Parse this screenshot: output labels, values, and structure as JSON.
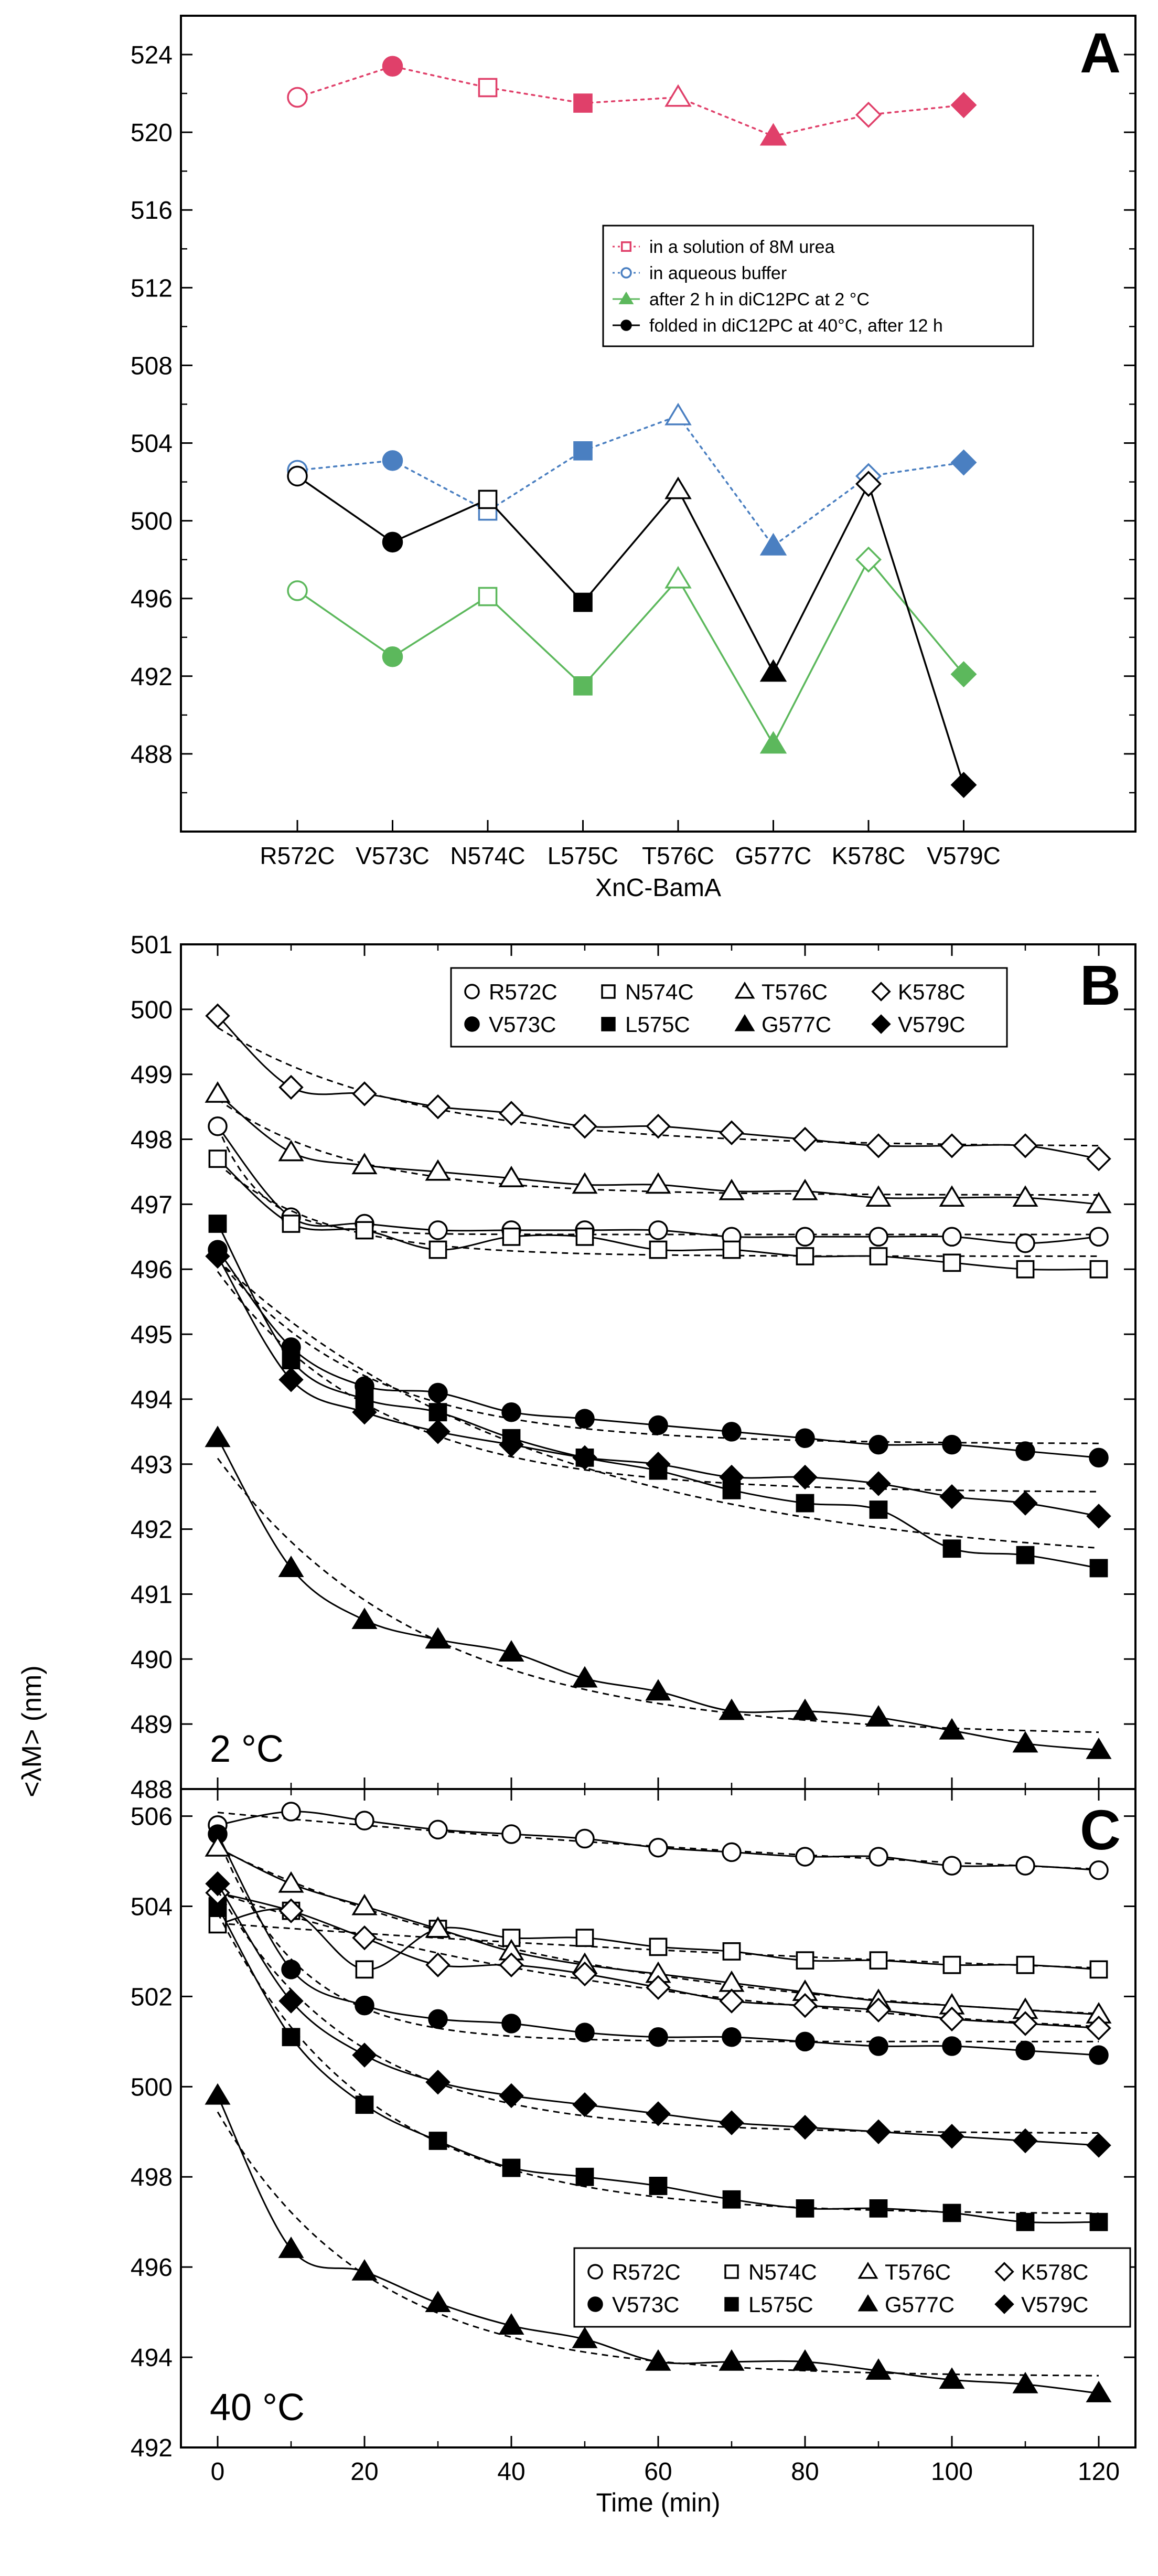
{
  "figure": {
    "shared_ylabel": "<λM> (nm)"
  },
  "chart_data": [
    {
      "panel": "A",
      "type": "line",
      "xlabel": "XnC-BamA",
      "ylabel": "<λM> (nm)",
      "ylim": [
        484,
        526
      ],
      "yticks": [
        488,
        492,
        496,
        500,
        504,
        508,
        512,
        516,
        520,
        524
      ],
      "grid": false,
      "legend_position": "center-right",
      "categories": [
        "R572C",
        "V573C",
        "N574C",
        "L575C",
        "T576C",
        "G577C",
        "K578C",
        "V579C"
      ],
      "markers": [
        "open-circle",
        "filled-circle",
        "open-square",
        "filled-square",
        "open-triangle",
        "filled-triangle",
        "open-diamond",
        "filled-diamond"
      ],
      "series": [
        {
          "name": "in a solution of 8M urea",
          "color": "#e0406a",
          "line": "dotted",
          "values": [
            521.8,
            523.4,
            522.3,
            521.5,
            521.8,
            519.8,
            520.9,
            521.4
          ]
        },
        {
          "name": "in aqueous buffer",
          "color": "#4a7fc1",
          "line": "dotted",
          "values": [
            502.6,
            503.1,
            500.5,
            503.6,
            505.4,
            498.7,
            502.3,
            503.0
          ]
        },
        {
          "name": "after 2 h in diC12PC at 2 °C",
          "color": "#5cb85c",
          "line": "solid",
          "values": [
            496.4,
            493.0,
            496.1,
            491.5,
            497.0,
            488.5,
            498.0,
            492.1
          ]
        },
        {
          "name": "folded in diC12PC at 40°C, after 12 h",
          "color": "#000000",
          "line": "solid",
          "values": [
            502.3,
            498.9,
            501.1,
            495.8,
            501.6,
            492.2,
            501.9,
            486.4
          ]
        }
      ]
    },
    {
      "panel": "B",
      "type": "scatter",
      "annotation": "2 °C",
      "xlim": [
        -5,
        125
      ],
      "ylim": [
        488,
        501
      ],
      "yticks": [
        488,
        489,
        490,
        491,
        492,
        493,
        494,
        495,
        496,
        497,
        498,
        499,
        500,
        501
      ],
      "grid": false,
      "legend_position": "top-right",
      "x": [
        0,
        10,
        20,
        30,
        40,
        50,
        60,
        70,
        80,
        90,
        100,
        110,
        120
      ],
      "series": [
        {
          "name": "R572C",
          "marker": "open-circle",
          "values": [
            498.2,
            496.8,
            496.7,
            496.6,
            496.6,
            496.6,
            496.6,
            496.5,
            496.5,
            496.5,
            496.5,
            496.4,
            496.5
          ]
        },
        {
          "name": "V573C",
          "marker": "filled-circle",
          "values": [
            496.3,
            494.8,
            494.2,
            494.1,
            493.8,
            493.7,
            493.6,
            493.5,
            493.4,
            493.3,
            493.3,
            493.2,
            493.1
          ]
        },
        {
          "name": "N574C",
          "marker": "open-square",
          "values": [
            497.7,
            496.7,
            496.6,
            496.3,
            496.5,
            496.5,
            496.3,
            496.3,
            496.2,
            496.2,
            496.1,
            496.0,
            496.0
          ]
        },
        {
          "name": "L575C",
          "marker": "filled-square",
          "values": [
            496.7,
            494.6,
            494.0,
            493.8,
            493.4,
            493.1,
            492.9,
            492.6,
            492.4,
            492.3,
            491.7,
            491.6,
            491.4
          ]
        },
        {
          "name": "T576C",
          "marker": "open-triangle",
          "values": [
            498.7,
            497.8,
            497.6,
            497.5,
            497.4,
            497.3,
            497.3,
            497.2,
            497.2,
            497.1,
            497.1,
            497.1,
            497.0
          ]
        },
        {
          "name": "G577C",
          "marker": "filled-triangle",
          "values": [
            493.4,
            491.4,
            490.6,
            490.3,
            490.1,
            489.7,
            489.5,
            489.2,
            489.2,
            489.1,
            488.9,
            488.7,
            488.6
          ]
        },
        {
          "name": "K578C",
          "marker": "open-diamond",
          "values": [
            499.9,
            498.8,
            498.7,
            498.5,
            498.4,
            498.2,
            498.2,
            498.1,
            498.0,
            497.9,
            497.9,
            497.9,
            497.7
          ]
        },
        {
          "name": "V579C",
          "marker": "filled-diamond",
          "values": [
            496.2,
            494.3,
            493.8,
            493.5,
            493.3,
            493.1,
            493.0,
            492.8,
            492.8,
            492.7,
            492.5,
            492.4,
            492.2
          ]
        }
      ]
    },
    {
      "panel": "C",
      "type": "scatter",
      "annotation": "40 °C",
      "xlabel": "Time (min)",
      "xlim": [
        -5,
        125
      ],
      "xticks": [
        0,
        20,
        40,
        60,
        80,
        100,
        120
      ],
      "ylim": [
        492,
        506.6
      ],
      "yticks": [
        492,
        494,
        496,
        498,
        500,
        502,
        504,
        506
      ],
      "grid": false,
      "legend_position": "bottom-right",
      "x": [
        0,
        10,
        20,
        30,
        40,
        50,
        60,
        70,
        80,
        90,
        100,
        110,
        120
      ],
      "series": [
        {
          "name": "R572C",
          "marker": "open-circle",
          "values": [
            505.8,
            506.1,
            505.9,
            505.7,
            505.6,
            505.5,
            505.3,
            505.2,
            505.1,
            505.1,
            504.9,
            504.9,
            504.8
          ]
        },
        {
          "name": "V573C",
          "marker": "filled-circle",
          "values": [
            505.6,
            502.6,
            501.8,
            501.5,
            501.4,
            501.2,
            501.1,
            501.1,
            501.0,
            500.9,
            500.9,
            500.8,
            500.7
          ]
        },
        {
          "name": "N574C",
          "marker": "open-square",
          "values": [
            503.6,
            503.9,
            502.6,
            503.5,
            503.3,
            503.3,
            503.1,
            503.0,
            502.8,
            502.8,
            502.7,
            502.7,
            502.6
          ]
        },
        {
          "name": "L575C",
          "marker": "filled-square",
          "values": [
            504.0,
            501.1,
            499.6,
            498.8,
            498.2,
            498.0,
            497.8,
            497.5,
            497.3,
            497.3,
            497.2,
            497.0,
            497.0
          ]
        },
        {
          "name": "T576C",
          "marker": "open-triangle",
          "values": [
            505.3,
            504.5,
            504.0,
            503.5,
            503.0,
            502.7,
            502.5,
            502.3,
            502.1,
            501.9,
            501.8,
            501.7,
            501.6
          ]
        },
        {
          "name": "G577C",
          "marker": "filled-triangle",
          "values": [
            499.8,
            496.4,
            495.9,
            495.2,
            494.7,
            494.4,
            493.9,
            493.9,
            493.9,
            493.7,
            493.5,
            493.4,
            493.2
          ]
        },
        {
          "name": "K578C",
          "marker": "open-diamond",
          "values": [
            504.3,
            503.9,
            503.3,
            502.7,
            502.7,
            502.5,
            502.2,
            501.9,
            501.8,
            501.7,
            501.5,
            501.4,
            501.3
          ]
        },
        {
          "name": "V579C",
          "marker": "filled-diamond",
          "values": [
            504.5,
            501.9,
            500.7,
            500.1,
            499.8,
            499.6,
            499.4,
            499.2,
            499.1,
            499.0,
            498.9,
            498.8,
            498.7
          ]
        }
      ]
    }
  ]
}
